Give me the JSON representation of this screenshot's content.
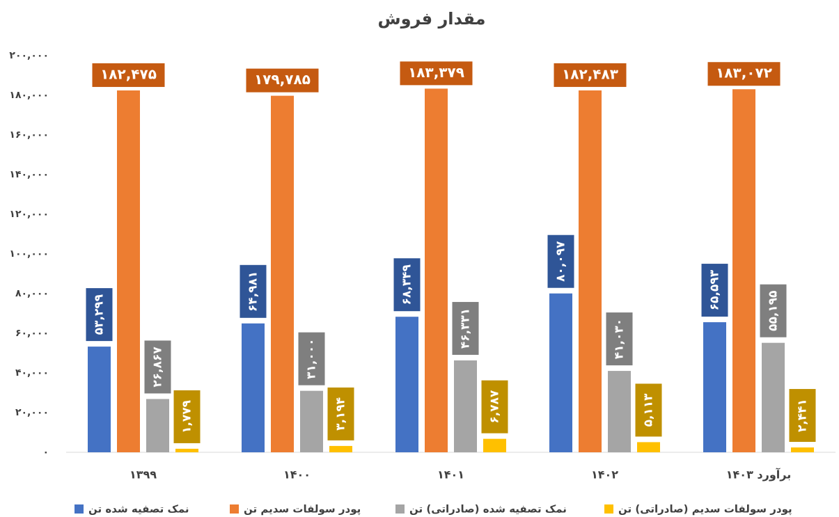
{
  "chart_data": {
    "type": "bar",
    "title": "مقدار فروش",
    "categories": [
      "۱۳۹۹",
      "۱۴۰۰",
      "۱۴۰۱",
      "۱۴۰۲",
      "برآورد ۱۴۰۳"
    ],
    "series": [
      {
        "name": "نمک تصفیه شده تن",
        "color": "#4472c4",
        "values": [
          53299,
          64981,
          68349,
          80097,
          65593
        ],
        "value_labels": [
          "۵۳,۲۹۹",
          "۶۴,۹۸۱",
          "۶۸,۳۴۹",
          "۸۰,۰۹۷",
          "۶۵,۵۹۳"
        ]
      },
      {
        "name": "پودر سولفات سدیم تن",
        "color": "#ed7d31",
        "values": [
          182475,
          179785,
          183379,
          182483,
          183072
        ],
        "value_labels": [
          "۱۸۲,۴۷۵",
          "۱۷۹,۷۸۵",
          "۱۸۳,۳۷۹",
          "۱۸۲,۴۸۳",
          "۱۸۳,۰۷۲"
        ]
      },
      {
        "name": "نمک تصفیه شده (صادراتی) تن",
        "color": "#a5a5a5",
        "values": [
          26867,
          31000,
          46331,
          41030,
          55195
        ],
        "value_labels": [
          "۲۶,۸۶۷",
          "۳۱,۰۰۰",
          "۴۶,۳۳۱",
          "۴۱,۰۳۰",
          "۵۵,۱۹۵"
        ]
      },
      {
        "name": "پودر سولفات سدیم (صادراتی) تن",
        "color": "#ffc000",
        "values": [
          1779,
          3194,
          6787,
          5113,
          2441
        ],
        "value_labels": [
          "۱,۷۷۹",
          "۳,۱۹۴",
          "۶,۷۸۷",
          "۵,۱۱۳",
          "۲,۴۴۱"
        ]
      }
    ],
    "ylim": [
      0,
      200000
    ],
    "yticks": [
      {
        "value": 0,
        "label": "۰"
      },
      {
        "value": 20000,
        "label": "۲۰,۰۰۰"
      },
      {
        "value": 40000,
        "label": "۴۰,۰۰۰"
      },
      {
        "value": 60000,
        "label": "۶۰,۰۰۰"
      },
      {
        "value": 80000,
        "label": "۸۰,۰۰۰"
      },
      {
        "value": 100000,
        "label": "۱۰۰,۰۰۰"
      },
      {
        "value": 120000,
        "label": "۱۲۰,۰۰۰"
      },
      {
        "value": 140000,
        "label": "۱۴۰,۰۰۰"
      },
      {
        "value": 160000,
        "label": "۱۶۰,۰۰۰"
      },
      {
        "value": 180000,
        "label": "۱۸۰,۰۰۰"
      },
      {
        "value": 200000,
        "label": "۲۰۰,۰۰۰"
      }
    ],
    "legend": "bottom"
  }
}
